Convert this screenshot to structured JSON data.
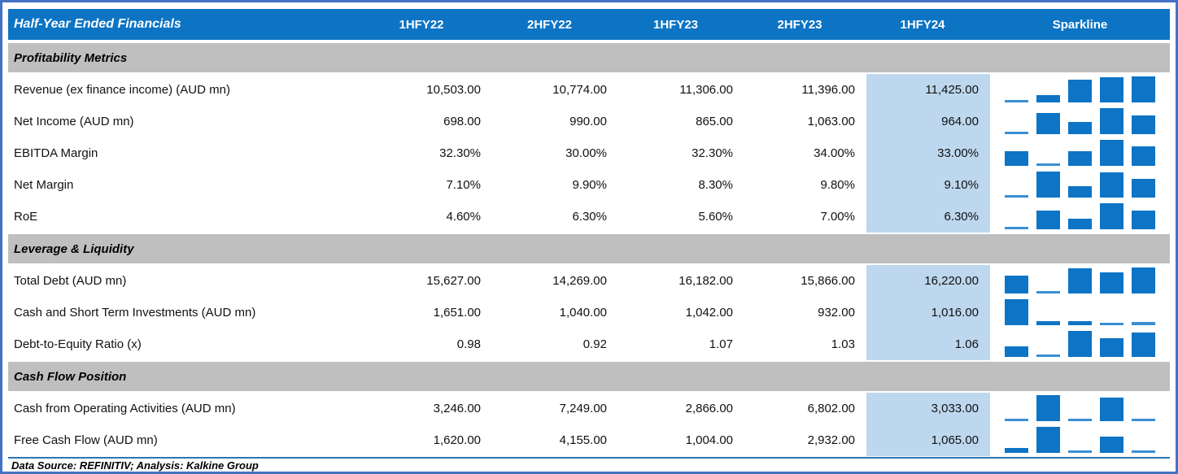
{
  "header": {
    "title": "Half-Year Ended Financials",
    "columns": [
      "1HFY22",
      "2HFY22",
      "1HFY23",
      "2HFY23",
      "1HFY24"
    ],
    "sparkline_label": "Sparkline",
    "highlight_column": "1HFY24"
  },
  "sections": [
    {
      "title": "Profitability Metrics",
      "rows": [
        {
          "label": "Revenue (ex finance income) (AUD mn)",
          "values": [
            "10,503.00",
            "10,774.00",
            "11,306.00",
            "11,396.00",
            "11,425.00"
          ]
        },
        {
          "label": "Net Income (AUD mn)",
          "values": [
            "698.00",
            "990.00",
            "865.00",
            "1,063.00",
            "964.00"
          ]
        },
        {
          "label": "EBITDA Margin",
          "values": [
            "32.30%",
            "30.00%",
            "32.30%",
            "34.00%",
            "33.00%"
          ]
        },
        {
          "label": "Net Margin",
          "values": [
            "7.10%",
            "9.90%",
            "8.30%",
            "9.80%",
            "9.10%"
          ]
        },
        {
          "label": "RoE",
          "values": [
            "4.60%",
            "6.30%",
            "5.60%",
            "7.00%",
            "6.30%"
          ]
        }
      ]
    },
    {
      "title": "Leverage & Liquidity",
      "rows": [
        {
          "label": "Total Debt (AUD mn)",
          "values": [
            "15,627.00",
            "14,269.00",
            "16,182.00",
            "15,866.00",
            "16,220.00"
          ]
        },
        {
          "label": "Cash and Short Term Investments (AUD mn)",
          "values": [
            "1,651.00",
            "1,040.00",
            "1,042.00",
            "932.00",
            "1,016.00"
          ]
        },
        {
          "label": "Debt-to-Equity Ratio (x)",
          "values": [
            "0.98",
            "0.92",
            "1.07",
            "1.03",
            "1.06"
          ]
        }
      ]
    },
    {
      "title": "Cash Flow Position",
      "rows": [
        {
          "label": "Cash from Operating Activities (AUD mn)",
          "values": [
            "3,246.00",
            "7,249.00",
            "2,866.00",
            "6,802.00",
            "3,033.00"
          ]
        },
        {
          "label": "Free Cash Flow (AUD mn)",
          "values": [
            "1,620.00",
            "4,155.00",
            "1,004.00",
            "2,932.00",
            "1,065.00"
          ]
        }
      ]
    }
  ],
  "footer": {
    "text": "Data Source: REFINITIV; Analysis: Kalkine Group"
  },
  "colors": {
    "header_bg": "#0d74c4",
    "header_text": "#ffffff",
    "section_bg": "#bfbfbf",
    "highlight_bg": "#bdd7ee",
    "sparkline_bar": "#0e74c5",
    "frame_border": "#4472c4",
    "footer_rule": "#2e75b6"
  },
  "chart_data": {
    "type": "table",
    "title": "Half-Year Ended Financials",
    "categories": [
      "1HFY22",
      "2HFY22",
      "1HFY23",
      "2HFY23",
      "1HFY24"
    ],
    "series": [
      {
        "name": "Revenue (ex finance income) (AUD mn)",
        "section": "Profitability Metrics",
        "values": [
          10503,
          10774,
          11306,
          11396,
          11425
        ]
      },
      {
        "name": "Net Income (AUD mn)",
        "section": "Profitability Metrics",
        "values": [
          698,
          990,
          865,
          1063,
          964
        ]
      },
      {
        "name": "EBITDA Margin",
        "section": "Profitability Metrics",
        "unit": "%",
        "values": [
          32.3,
          30.0,
          32.3,
          34.0,
          33.0
        ]
      },
      {
        "name": "Net Margin",
        "section": "Profitability Metrics",
        "unit": "%",
        "values": [
          7.1,
          9.9,
          8.3,
          9.8,
          9.1
        ]
      },
      {
        "name": "RoE",
        "section": "Profitability Metrics",
        "unit": "%",
        "values": [
          4.6,
          6.3,
          5.6,
          7.0,
          6.3
        ]
      },
      {
        "name": "Total Debt (AUD mn)",
        "section": "Leverage & Liquidity",
        "values": [
          15627,
          14269,
          16182,
          15866,
          16220
        ]
      },
      {
        "name": "Cash and Short Term Investments (AUD mn)",
        "section": "Leverage & Liquidity",
        "values": [
          1651,
          1040,
          1042,
          932,
          1016
        ]
      },
      {
        "name": "Debt-to-Equity Ratio (x)",
        "section": "Leverage & Liquidity",
        "values": [
          0.98,
          0.92,
          1.07,
          1.03,
          1.06
        ]
      },
      {
        "name": "Cash from Operating Activities (AUD mn)",
        "section": "Cash Flow Position",
        "values": [
          3246,
          7249,
          2866,
          6802,
          3033
        ]
      },
      {
        "name": "Free Cash Flow (AUD mn)",
        "section": "Cash Flow Position",
        "values": [
          1620,
          4155,
          1004,
          2932,
          1065
        ]
      }
    ],
    "sparkline": {
      "type": "bar",
      "scale": "per-row min to max",
      "color": "#0e74c5",
      "position": "right column"
    }
  }
}
